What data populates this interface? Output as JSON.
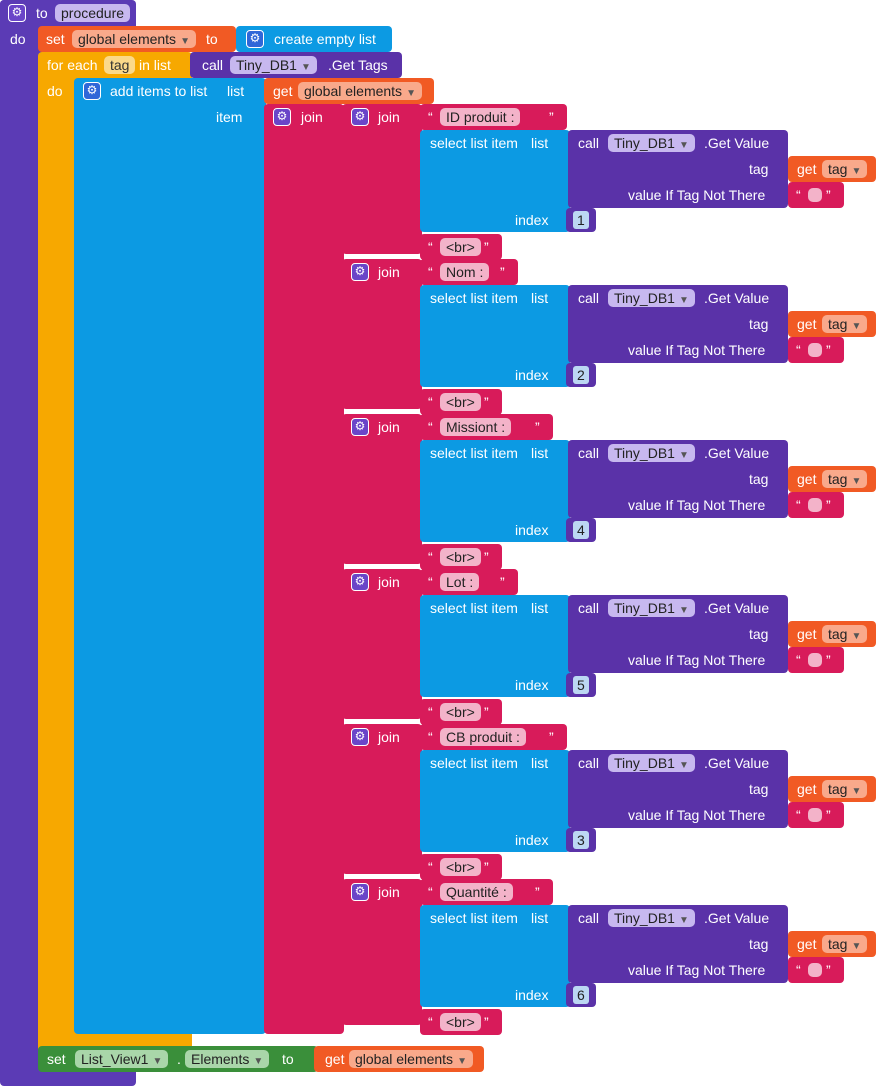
{
  "procedure": {
    "to_label": "to",
    "name": "procedure",
    "do_label": "do"
  },
  "set_global": {
    "set_label": "set",
    "var": "global elements",
    "to_label": "to",
    "create": "create empty list"
  },
  "for_each": {
    "label": "for each",
    "var": "tag",
    "in_list": "in list",
    "do_label": "do",
    "call": "call",
    "component": "Tiny_DB1",
    "method": ".Get Tags"
  },
  "add_items": {
    "label": "add items to list",
    "list_label": "list",
    "item_label": "item",
    "get_label": "get",
    "var": "global elements"
  },
  "join_label": "join",
  "fields": [
    {
      "label": "ID produit : ",
      "index": "1"
    },
    {
      "label": "Nom : ",
      "index": "2"
    },
    {
      "label": "Missiont : ",
      "index": "4"
    },
    {
      "label": "Lot : ",
      "index": "5"
    },
    {
      "label": "CB produit : ",
      "index": "3"
    },
    {
      "label": "Quantité : ",
      "index": "6"
    }
  ],
  "row": {
    "select": "select list item",
    "list_label": "list",
    "index_label": "index",
    "call": "call",
    "component": "Tiny_DB1",
    "method": ".Get Value",
    "tag_label": "tag",
    "get_label": "get",
    "tag_var": "tag",
    "value_label": "value If Tag Not There",
    "br": "<br>",
    "quote_open": "“",
    "quote_close": "”"
  },
  "set_listview": {
    "set_label": "set",
    "component": "List_View1",
    "dot": ".",
    "prop": "Elements",
    "to_label": "to",
    "get_label": "get",
    "var": "global elements"
  }
}
